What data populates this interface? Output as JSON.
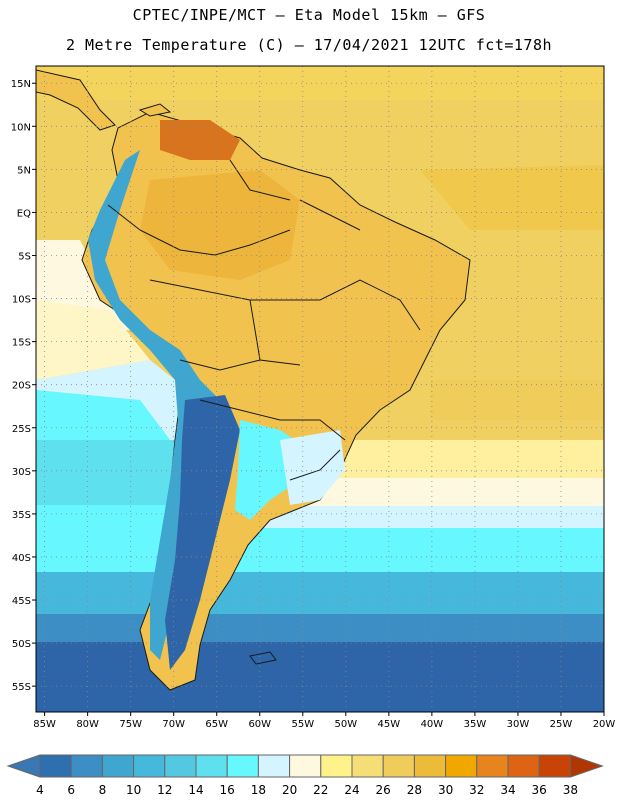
{
  "header": {
    "line1": "CPTEC/INPE/MCT –  Eta Model 15km – GFS",
    "line2": "2 Metre Temperature (C) – 17/04/2021 12UTC fct=178h"
  },
  "map": {
    "lat_labels": [
      "15N",
      "10N",
      "5N",
      "EQ",
      "5S",
      "10S",
      "15S",
      "20S",
      "25S",
      "30S",
      "35S",
      "40S",
      "45S",
      "50S",
      "55S"
    ],
    "lat_values": [
      15,
      10,
      5,
      0,
      -5,
      -10,
      -15,
      -20,
      -25,
      -30,
      -35,
      -40,
      -45,
      -50,
      -55
    ],
    "lon_labels": [
      "85W",
      "80W",
      "75W",
      "70W",
      "65W",
      "60W",
      "55W",
      "50W",
      "45W",
      "40W",
      "35W",
      "30W",
      "25W",
      "20W"
    ],
    "lon_values": [
      -85,
      -80,
      -75,
      -70,
      -65,
      -60,
      -55,
      -50,
      -45,
      -40,
      -35,
      -30,
      -25,
      -20
    ],
    "lat_range": [
      -58,
      17
    ],
    "lon_range": [
      -86,
      -20
    ],
    "ocean_color": "#f0d060",
    "land_color": "#f2c24e",
    "border_color": "#1a1a1a"
  },
  "colorbar": {
    "ticks": [
      "4",
      "6",
      "8",
      "10",
      "12",
      "14",
      "16",
      "18",
      "20",
      "22",
      "24",
      "26",
      "28",
      "30",
      "32",
      "34",
      "36",
      "38"
    ],
    "colors": [
      "#3a78b4",
      "#2e6fb0",
      "#3d8ec4",
      "#3fa6cf",
      "#46b8dc",
      "#54c8e0",
      "#5ee0ee",
      "#66f7ff",
      "#d4f4ff",
      "#fff8e0",
      "#fff28a",
      "#f6de76",
      "#f0cc5a",
      "#ecbb3a",
      "#f0a800",
      "#e8841e",
      "#dc6414",
      "#c84406",
      "#b03602"
    ]
  }
}
